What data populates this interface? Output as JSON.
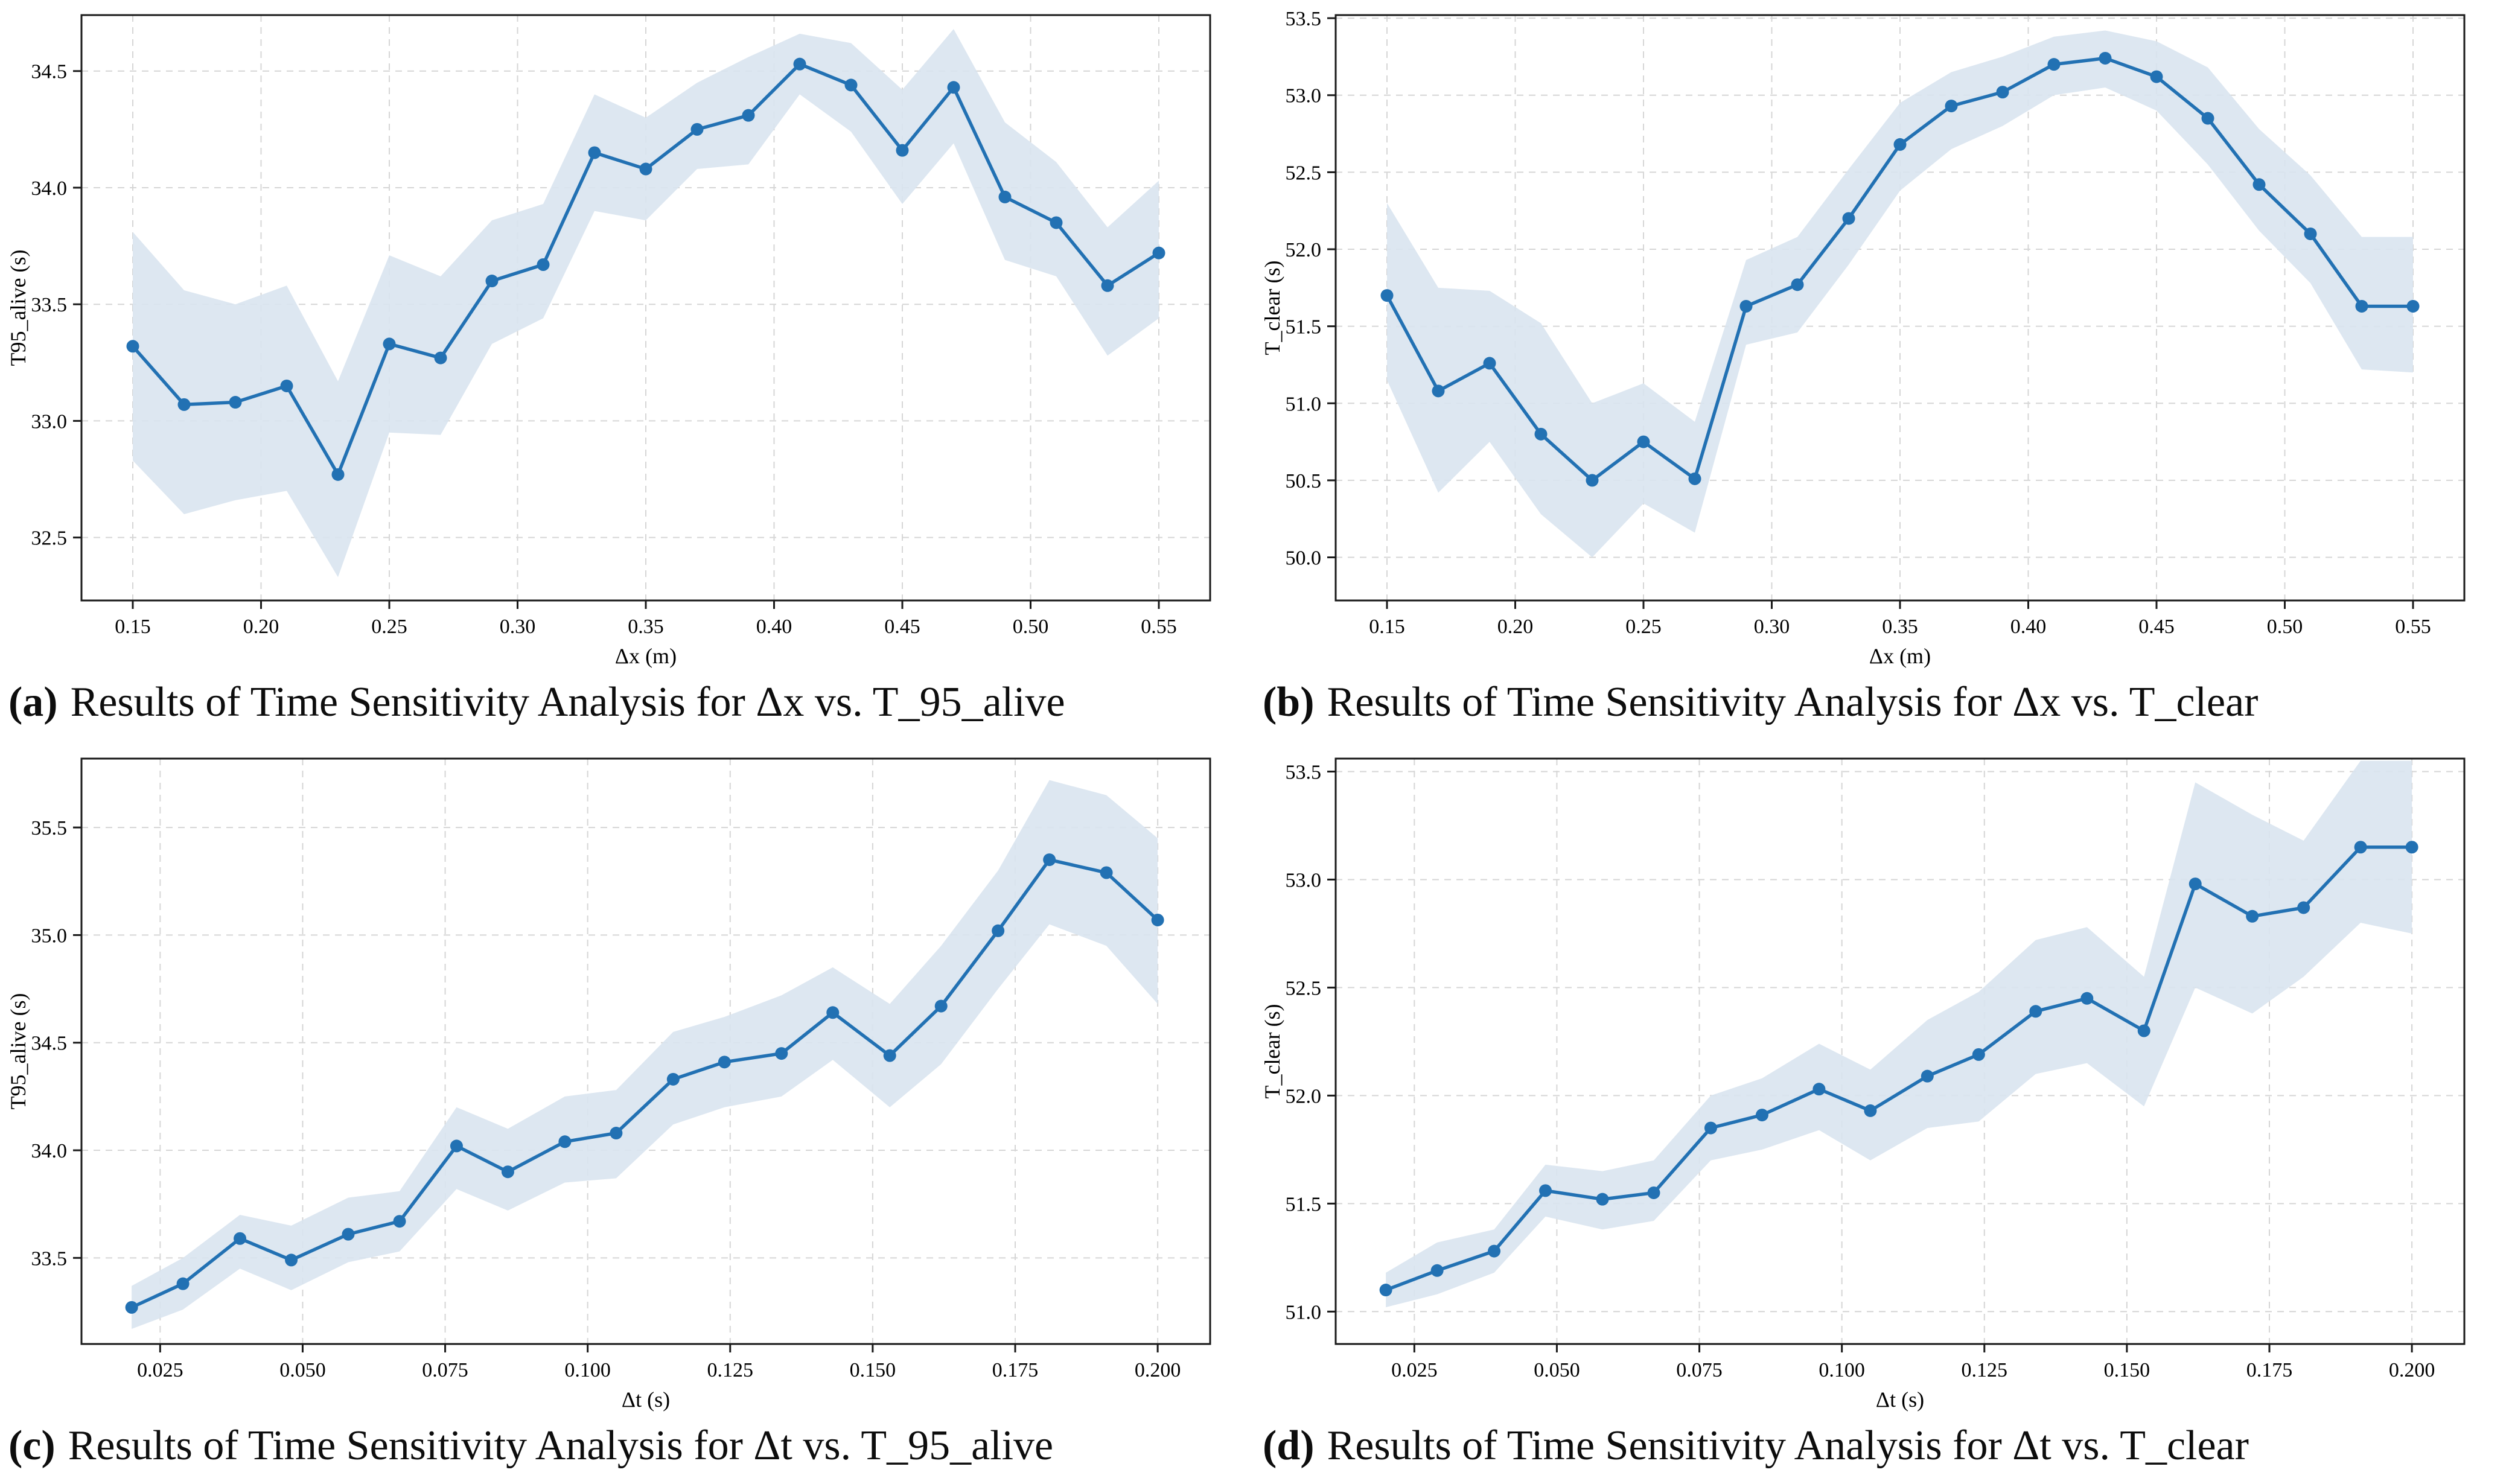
{
  "style": {
    "line_color": "#2271b3",
    "marker_color": "#2271b3",
    "band_color": "#d9e4ef",
    "grid_color": "#d6d6d6",
    "spine_color": "#1a1a1a",
    "text_color": "#000000",
    "background": "#ffffff"
  },
  "chart_data": [
    {
      "id": "a",
      "type": "line",
      "caption_label": "(a)",
      "caption_text": "Results of Time Sensitivity Analysis for Δx vs. T_95_alive",
      "xlabel": "Δx (m)",
      "ylabel": "T95_alive (s)",
      "xlim": [
        0.13,
        0.57
      ],
      "ylim": [
        32.23,
        34.74
      ],
      "xticks": {
        "values": [
          0.15,
          0.2,
          0.25,
          0.3,
          0.35,
          0.4,
          0.45,
          0.5,
          0.55
        ],
        "labels": [
          "0.15",
          "0.20",
          "0.25",
          "0.30",
          "0.35",
          "0.40",
          "0.45",
          "0.50",
          "0.55"
        ]
      },
      "yticks": {
        "values": [
          32.5,
          33.0,
          33.5,
          34.0,
          34.5
        ],
        "labels": [
          "32.5",
          "33.0",
          "33.5",
          "34.0",
          "34.5"
        ]
      },
      "x": [
        0.15,
        0.17,
        0.19,
        0.21,
        0.23,
        0.25,
        0.27,
        0.29,
        0.31,
        0.33,
        0.35,
        0.37,
        0.39,
        0.41,
        0.43,
        0.45,
        0.47,
        0.49,
        0.51,
        0.53,
        0.55
      ],
      "y": [
        33.32,
        33.07,
        33.08,
        33.15,
        32.77,
        33.33,
        33.27,
        33.6,
        33.67,
        34.15,
        34.08,
        34.25,
        34.31,
        34.53,
        34.44,
        34.16,
        34.43,
        33.96,
        33.85,
        33.58,
        33.72
      ],
      "band_lower": [
        32.83,
        32.6,
        32.66,
        32.7,
        32.33,
        32.95,
        32.94,
        33.33,
        33.44,
        33.9,
        33.86,
        34.08,
        34.1,
        34.4,
        34.24,
        33.93,
        34.19,
        33.69,
        33.62,
        33.28,
        33.44
      ],
      "band_upper": [
        33.81,
        33.56,
        33.5,
        33.58,
        33.17,
        33.71,
        33.62,
        33.86,
        33.93,
        34.4,
        34.3,
        34.45,
        34.56,
        34.66,
        34.62,
        34.42,
        34.68,
        34.28,
        34.11,
        33.83,
        34.03
      ]
    },
    {
      "id": "b",
      "type": "line",
      "caption_label": "(b)",
      "caption_text": "Results of Time Sensitivity Analysis for Δx vs. T_clear",
      "xlabel": "Δx (m)",
      "ylabel": "T_clear (s)",
      "xlim": [
        0.13,
        0.57
      ],
      "ylim": [
        49.72,
        53.52
      ],
      "xticks": {
        "values": [
          0.15,
          0.2,
          0.25,
          0.3,
          0.35,
          0.4,
          0.45,
          0.5,
          0.55
        ],
        "labels": [
          "0.15",
          "0.20",
          "0.25",
          "0.30",
          "0.35",
          "0.40",
          "0.45",
          "0.50",
          "0.55"
        ]
      },
      "yticks": {
        "values": [
          50.0,
          50.5,
          51.0,
          51.5,
          52.0,
          52.5,
          53.0,
          53.5
        ],
        "labels": [
          "50.0",
          "50.5",
          "51.0",
          "51.5",
          "52.0",
          "52.5",
          "53.0",
          "53.5"
        ]
      },
      "x": [
        0.15,
        0.17,
        0.19,
        0.21,
        0.23,
        0.25,
        0.27,
        0.29,
        0.31,
        0.33,
        0.35,
        0.37,
        0.39,
        0.41,
        0.43,
        0.45,
        0.47,
        0.49,
        0.51,
        0.53,
        0.55
      ],
      "y": [
        51.7,
        51.08,
        51.26,
        50.8,
        50.5,
        50.75,
        50.51,
        51.63,
        51.77,
        52.2,
        52.68,
        52.93,
        53.02,
        53.2,
        53.24,
        53.12,
        52.85,
        52.42,
        52.1,
        51.63,
        51.63
      ],
      "band_lower": [
        51.15,
        50.42,
        50.75,
        50.28,
        50.0,
        50.35,
        50.16,
        51.38,
        51.46,
        51.9,
        52.38,
        52.65,
        52.8,
        53.0,
        53.05,
        52.9,
        52.55,
        52.12,
        51.78,
        51.22,
        51.2
      ],
      "band_upper": [
        52.3,
        51.75,
        51.73,
        51.52,
        51.0,
        51.13,
        50.88,
        51.93,
        52.08,
        52.52,
        52.95,
        53.15,
        53.25,
        53.38,
        53.42,
        53.35,
        53.18,
        52.78,
        52.48,
        52.08,
        52.08
      ]
    },
    {
      "id": "c",
      "type": "line",
      "caption_label": "(c)",
      "caption_text": "Results of Time Sensitivity Analysis for Δt vs. T_95_alive",
      "xlabel": "Δt (s)",
      "ylabel": "T95_alive (s)",
      "xlim": [
        0.0112,
        0.2092
      ],
      "ylim": [
        33.1,
        35.82
      ],
      "xticks": {
        "values": [
          0.025,
          0.05,
          0.075,
          0.1,
          0.125,
          0.15,
          0.175,
          0.2
        ],
        "labels": [
          "0.025",
          "0.050",
          "0.075",
          "0.100",
          "0.125",
          "0.150",
          "0.175",
          "0.200"
        ]
      },
      "yticks": {
        "values": [
          33.5,
          34.0,
          34.5,
          35.0,
          35.5
        ],
        "labels": [
          "33.5",
          "34.0",
          "34.5",
          "35.0",
          "35.5"
        ]
      },
      "x": [
        0.02,
        0.029,
        0.039,
        0.048,
        0.058,
        0.067,
        0.077,
        0.086,
        0.096,
        0.105,
        0.115,
        0.124,
        0.134,
        0.143,
        0.153,
        0.162,
        0.172,
        0.181,
        0.191,
        0.2
      ],
      "y": [
        33.27,
        33.38,
        33.59,
        33.49,
        33.61,
        33.67,
        34.02,
        33.9,
        34.04,
        34.08,
        34.33,
        34.41,
        34.45,
        34.64,
        34.44,
        34.67,
        35.02,
        35.35,
        35.29,
        35.07
      ],
      "band_lower": [
        33.17,
        33.26,
        33.45,
        33.35,
        33.48,
        33.53,
        33.82,
        33.72,
        33.85,
        33.87,
        34.12,
        34.2,
        34.25,
        34.42,
        34.2,
        34.4,
        34.75,
        35.05,
        34.95,
        34.68
      ],
      "band_upper": [
        33.37,
        33.5,
        33.7,
        33.65,
        33.78,
        33.81,
        34.2,
        34.1,
        34.25,
        34.28,
        34.55,
        34.62,
        34.72,
        34.85,
        34.68,
        34.95,
        35.3,
        35.72,
        35.65,
        35.45
      ]
    },
    {
      "id": "d",
      "type": "line",
      "caption_label": "(d)",
      "caption_text": "Results of Time Sensitivity Analysis for Δt vs. T_clear",
      "xlabel": "Δt (s)",
      "ylabel": "T_clear (s)",
      "xlim": [
        0.0112,
        0.2092
      ],
      "ylim": [
        50.85,
        53.56
      ],
      "xticks": {
        "values": [
          0.025,
          0.05,
          0.075,
          0.1,
          0.125,
          0.15,
          0.175,
          0.2
        ],
        "labels": [
          "0.025",
          "0.050",
          "0.075",
          "0.100",
          "0.125",
          "0.150",
          "0.175",
          "0.200"
        ]
      },
      "yticks": {
        "values": [
          51.0,
          51.5,
          52.0,
          52.5,
          53.0,
          53.5
        ],
        "labels": [
          "51.0",
          "51.5",
          "52.0",
          "52.5",
          "53.0",
          "53.5"
        ]
      },
      "x": [
        0.02,
        0.029,
        0.039,
        0.048,
        0.058,
        0.067,
        0.077,
        0.086,
        0.096,
        0.105,
        0.115,
        0.124,
        0.134,
        0.143,
        0.153,
        0.162,
        0.172,
        0.181,
        0.191,
        0.2
      ],
      "y": [
        51.1,
        51.19,
        51.28,
        51.56,
        51.52,
        51.55,
        51.85,
        51.91,
        52.03,
        51.93,
        52.09,
        52.19,
        52.39,
        52.45,
        52.3,
        52.98,
        52.83,
        52.87,
        53.15,
        53.15
      ],
      "band_lower": [
        51.02,
        51.08,
        51.18,
        51.44,
        51.38,
        51.42,
        51.7,
        51.75,
        51.84,
        51.7,
        51.85,
        51.88,
        52.1,
        52.15,
        51.95,
        52.5,
        52.38,
        52.55,
        52.8,
        52.75
      ],
      "band_upper": [
        51.18,
        51.32,
        51.38,
        51.68,
        51.65,
        51.7,
        52.0,
        52.08,
        52.24,
        52.12,
        52.35,
        52.48,
        52.72,
        52.78,
        52.55,
        53.45,
        53.3,
        53.18,
        53.55,
        53.55
      ]
    }
  ]
}
